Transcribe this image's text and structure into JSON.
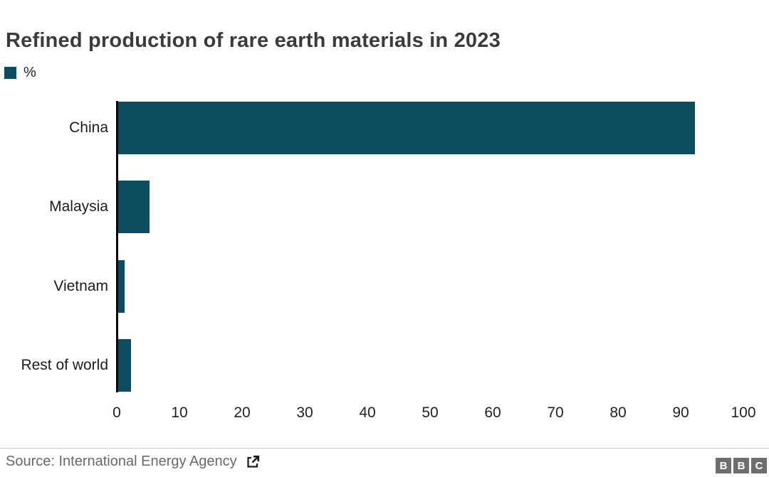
{
  "title": "Refined production of rare earth materials in 2023",
  "legend": {
    "label": "%",
    "swatch_color": "#0c4e5f"
  },
  "chart_data": {
    "type": "bar",
    "orientation": "horizontal",
    "title": "Refined production of rare earth materials in 2023",
    "categories": [
      "China",
      "Malaysia",
      "Vietnam",
      "Rest of world"
    ],
    "values": [
      92,
      5,
      1,
      2
    ],
    "unit": "%",
    "xlabel": "",
    "ylabel": "",
    "xlim": [
      0,
      100
    ],
    "x_ticks": [
      0,
      10,
      20,
      30,
      40,
      50,
      60,
      70,
      80,
      90,
      100
    ],
    "bar_color": "#0c4e5f",
    "axis_color": "#000000",
    "grid": false,
    "legend_position": "top-left"
  },
  "footer": {
    "source_label": "Source: International Energy Agency",
    "logo_letters": [
      "B",
      "B",
      "C"
    ],
    "logo_color": "#6e6e6e"
  }
}
